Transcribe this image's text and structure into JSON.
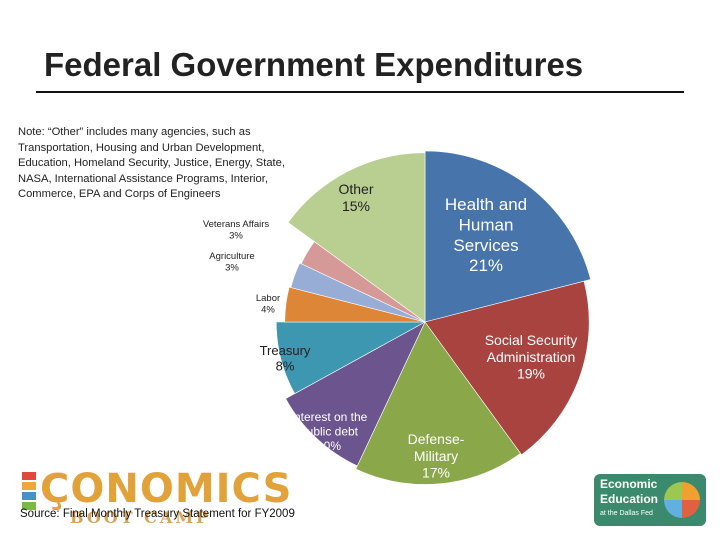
{
  "title": "Federal Government Expenditures",
  "note": "Note: “Other” includes many agencies, such as Transportation, Housing and Urban Development, Education, Homeland Security, Justice, Energy, State, NASA, International Assistance Programs, Interior, Commerce, EPA and Corps of Engineers",
  "source": "Source: Final Monthly Treasury Statement for FY2009",
  "logos": {
    "left_word": "ÇONOMICS",
    "left_sub": "BOOT CAMP",
    "right_line1": "Economic",
    "right_line2": "Education",
    "right_line3": "at the Dallas Fed"
  },
  "chart_data": {
    "type": "pie",
    "title": "Federal Government Expenditures",
    "slices": [
      {
        "label": "Health and Human Services",
        "value": 21,
        "value_label": "21%",
        "color": "#4674ab"
      },
      {
        "label": "Social Security Administration",
        "value": 19,
        "value_label": "19%",
        "color": "#a84340"
      },
      {
        "label": "Defense-Military",
        "value": 17,
        "value_label": "17%",
        "color": "#8aa84a"
      },
      {
        "label": "Interest on the public debt",
        "value": 10,
        "value_label": "10%",
        "color": "#6c558e"
      },
      {
        "label": "Treasury",
        "value": 8,
        "value_label": "8%",
        "color": "#3e97b1"
      },
      {
        "label": "Labor",
        "value": 4,
        "value_label": "4%",
        "color": "#de8637"
      },
      {
        "label": "Agriculture",
        "value": 3,
        "value_label": "3%",
        "color": "#98add6"
      },
      {
        "label": "Veterans Affairs",
        "value": 3,
        "value_label": "3%",
        "color": "#d59a98"
      },
      {
        "label": "Other",
        "value": 15,
        "value_label": "15%",
        "color": "#b9cf92"
      }
    ]
  }
}
